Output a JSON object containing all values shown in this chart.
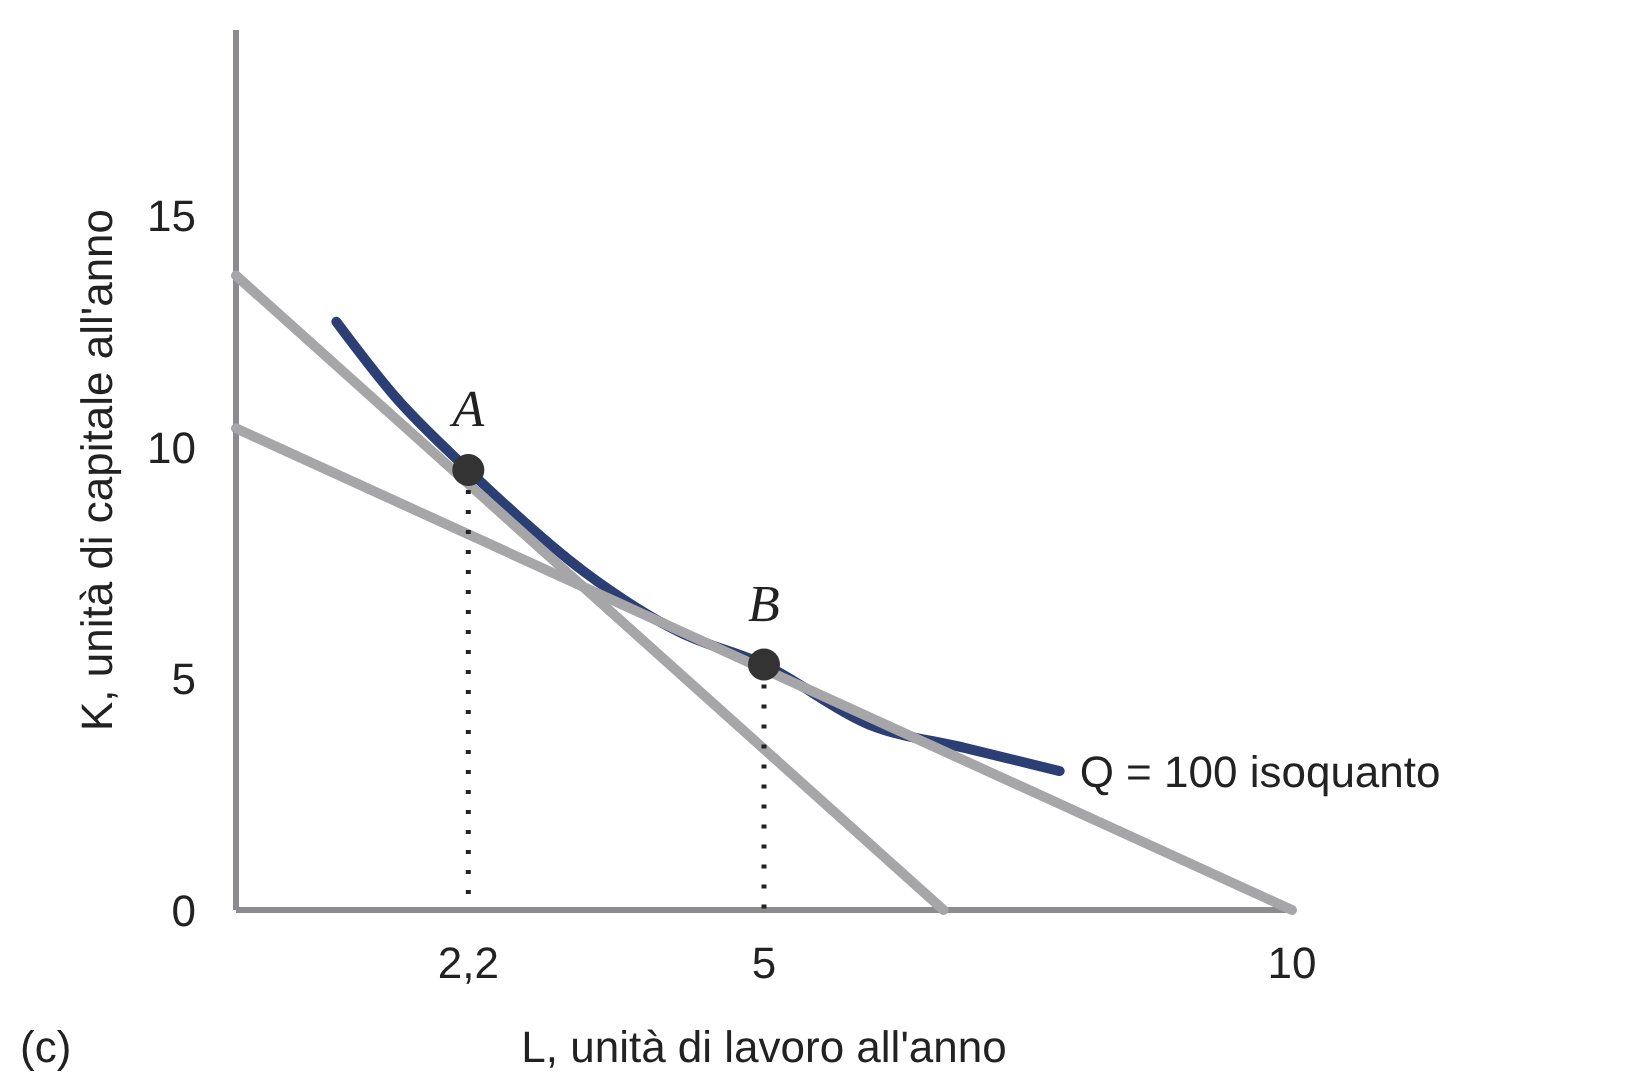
{
  "chart_data": {
    "type": "line",
    "xlabel": "L, unità di lavoro all'anno",
    "ylabel": "K, unità di capitale all'anno",
    "xlim": [
      0,
      10
    ],
    "ylim": [
      0,
      19
    ],
    "xticks": [
      {
        "value": 2.2,
        "label": "2,2"
      },
      5,
      10
    ],
    "yticks": [
      0,
      5,
      10,
      15
    ],
    "grid": false,
    "legend": false,
    "series": [
      {
        "name": "Q = 100 isoquanto",
        "color": "#2b3f74",
        "x": [
          0.95,
          1.5,
          2.2,
          3.3,
          4.2,
          5,
          6,
          6.9,
          7.8
        ],
        "values": [
          12.7,
          11.1,
          9.5,
          7.3,
          6.0,
          5.3,
          4.0,
          3.5,
          3.0
        ]
      },
      {
        "color": "#a6a6a8",
        "x": [
          0,
          6.7
        ],
        "values": [
          13.7,
          0
        ]
      },
      {
        "color": "#a6a6a8",
        "x": [
          0,
          10
        ],
        "values": [
          10.4,
          0
        ]
      },
      {
        "type": "scatter",
        "color": "#333333",
        "x": [
          2.2,
          5
        ],
        "values": [
          9.5,
          5.3
        ]
      }
    ],
    "annotations": [
      {
        "text": "A",
        "x": 2.2,
        "y": 9.5
      },
      {
        "text": "B",
        "x": 5,
        "y": 5.3
      },
      "(c)"
    ]
  }
}
